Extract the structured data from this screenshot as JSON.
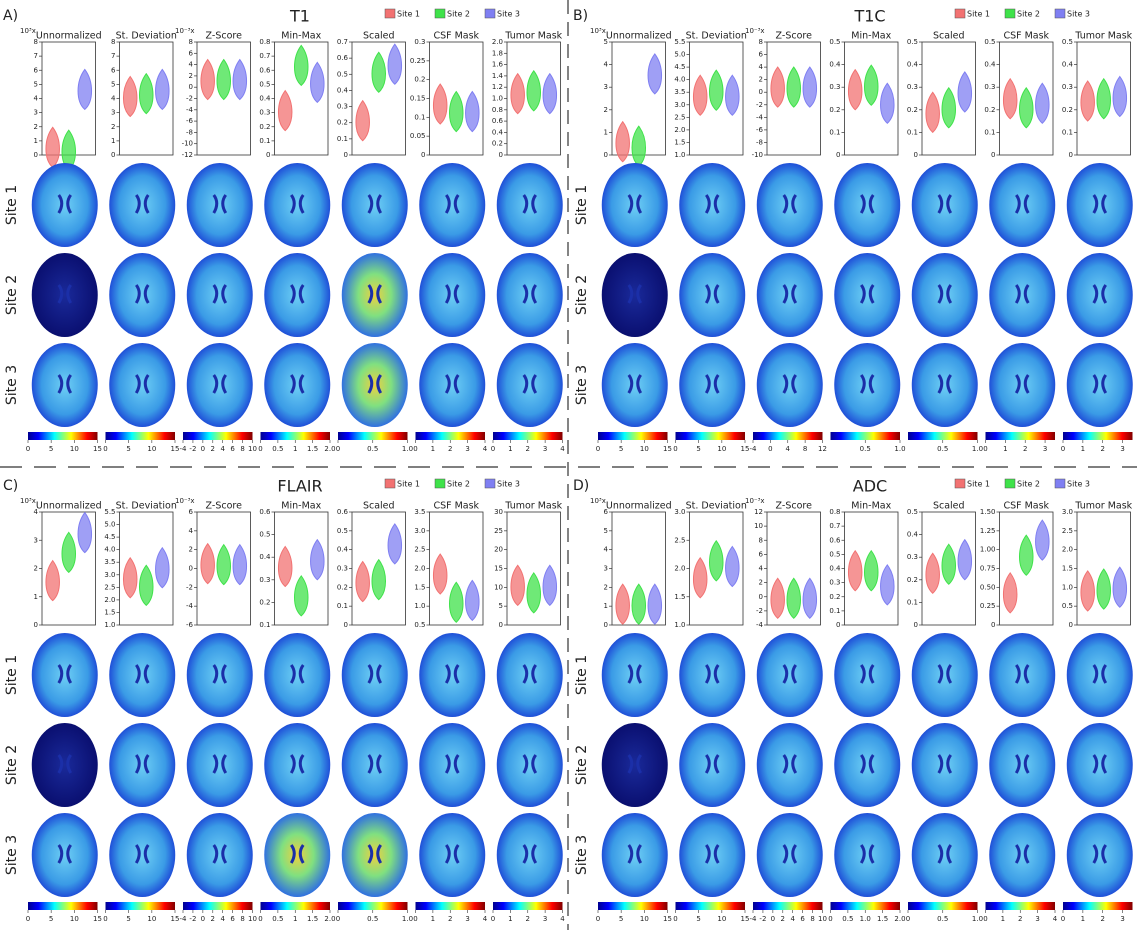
{
  "sites": [
    {
      "name": "Site 1",
      "color": "#f27272"
    },
    {
      "name": "Site 2",
      "color": "#3fe24a"
    },
    {
      "name": "Site 3",
      "color": "#7f7ff2"
    }
  ],
  "panels": [
    {
      "label": "A)",
      "title": "T1",
      "methods": [
        {
          "name": "Unnormalized",
          "scale": "10³x",
          "ylim": [
            0,
            8
          ],
          "yticks": [
            0,
            1,
            2,
            3,
            4,
            5,
            6,
            7,
            8
          ],
          "medians": [
            0.4,
            0.2,
            4.5
          ],
          "cbar": {
            "lim": [
              0,
              15
            ],
            "ticks": [
              0,
              5,
              10,
              15
            ]
          }
        },
        {
          "name": "St. Deviation",
          "ylim": [
            0,
            8
          ],
          "yticks": [
            0,
            1,
            2,
            3,
            4,
            5,
            6,
            7,
            8
          ],
          "medians": [
            4,
            4.2,
            4.5
          ],
          "cbar": {
            "lim": [
              0,
              15
            ],
            "ticks": [
              0,
              5,
              10,
              15
            ]
          }
        },
        {
          "name": "Z-Score",
          "scale": "10⁻³x",
          "ylim": [
            -12,
            8
          ],
          "yticks": [
            -12,
            -10,
            -8,
            -6,
            -4,
            -2,
            0,
            2,
            4,
            6,
            8
          ],
          "medians": [
            1,
            1,
            1
          ],
          "cbar": {
            "lim": [
              -4,
              10
            ],
            "ticks": [
              -4,
              -2,
              0,
              2,
              4,
              6,
              8,
              10
            ]
          }
        },
        {
          "name": "Min-Max",
          "ylim": [
            0,
            0.8
          ],
          "yticks": [
            0,
            0.1,
            0.2,
            0.3,
            0.4,
            0.5,
            0.6,
            0.7,
            0.8
          ],
          "medians": [
            0.3,
            0.62,
            0.5
          ],
          "cbar": {
            "lim": [
              0,
              2
            ],
            "ticks": [
              0,
              0.5,
              1,
              1.5,
              {
                "value": 2,
                "label": "2.0"
              }
            ]
          }
        },
        {
          "name": "Scaled",
          "ylim": [
            0,
            0.7
          ],
          "yticks": [
            0,
            0.1,
            0.2,
            0.3,
            0.4,
            0.5,
            0.6,
            0.7
          ],
          "medians": [
            0.2,
            0.5,
            0.55
          ],
          "cbar": {
            "lim": [
              0,
              1
            ],
            "ticks": [
              0,
              0.5,
              {
                "value": 1,
                "label": "1.0"
              }
            ]
          }
        },
        {
          "name": "CSF Mask",
          "ylim": [
            0,
            0.3
          ],
          "yticks": [
            0,
            0.05,
            0.1,
            0.15,
            0.2,
            0.25,
            0.3
          ],
          "medians": [
            0.13,
            0.11,
            0.11
          ],
          "cbar": {
            "lim": [
              0,
              4
            ],
            "ticks": [
              0,
              1,
              2,
              3,
              4
            ]
          }
        },
        {
          "name": "Tumor Mask",
          "ylim": [
            0,
            2
          ],
          "yticks": [
            0,
            0.2,
            0.4,
            0.6,
            0.8,
            {
              "value": 1,
              "label": "1.0"
            },
            1.2,
            1.4,
            1.6,
            1.8,
            {
              "value": 2,
              "label": "2.0"
            }
          ],
          "medians": [
            1.05,
            1.1,
            1.05
          ],
          "cbar": {
            "lim": [
              0,
              4
            ],
            "ticks": [
              0,
              1,
              2,
              3,
              4
            ]
          }
        }
      ]
    },
    {
      "label": "B)",
      "title": "T1C",
      "methods": [
        {
          "name": "Unnormalized",
          "scale": "10³x",
          "ylim": [
            0,
            5
          ],
          "yticks": [
            0,
            1,
            2,
            3,
            4,
            5
          ],
          "medians": [
            0.5,
            0.3,
            3.5
          ],
          "cbar": {
            "lim": [
              0,
              15
            ],
            "ticks": [
              0,
              5,
              10,
              15
            ]
          }
        },
        {
          "name": "St. Deviation",
          "ylim": [
            1,
            5.5
          ],
          "yticks": [
            {
              "value": 1,
              "label": "1.0"
            },
            1.5,
            {
              "value": 2,
              "label": "2.0"
            },
            2.5,
            {
              "value": 3,
              "label": "3.0"
            },
            3.5,
            {
              "value": 4,
              "label": "4.0"
            },
            4.5,
            {
              "value": 5,
              "label": "5.0"
            },
            5.5
          ],
          "medians": [
            3.3,
            3.5,
            3.3
          ],
          "cbar": {
            "lim": [
              0,
              15
            ],
            "ticks": [
              0,
              5,
              10,
              15
            ]
          }
        },
        {
          "name": "Z-Score",
          "scale": "10⁻³x",
          "ylim": [
            -10,
            8
          ],
          "yticks": [
            -10,
            -8,
            -6,
            -4,
            -2,
            0,
            2,
            4,
            6,
            8
          ],
          "medians": [
            0.5,
            0.5,
            0.5
          ],
          "cbar": {
            "lim": [
              -4,
              12
            ],
            "ticks": [
              -4,
              0,
              4,
              8,
              12
            ]
          }
        },
        {
          "name": "Min-Max",
          "ylim": [
            0,
            0.5
          ],
          "yticks": [
            0,
            0.1,
            0.2,
            0.3,
            0.4,
            0.5
          ],
          "medians": [
            0.28,
            0.3,
            0.22
          ],
          "cbar": {
            "lim": [
              0,
              1
            ],
            "ticks": [
              0.5,
              {
                "value": 1,
                "label": "1.0"
              }
            ]
          }
        },
        {
          "name": "Scaled",
          "ylim": [
            0,
            0.5
          ],
          "yticks": [
            0,
            0.1,
            0.2,
            0.3,
            0.4,
            0.5
          ],
          "medians": [
            0.18,
            0.2,
            0.27
          ],
          "cbar": {
            "lim": [
              0,
              1
            ],
            "ticks": [
              0.5,
              {
                "value": 1,
                "label": "1.0"
              }
            ]
          }
        },
        {
          "name": "CSF Mask",
          "ylim": [
            0,
            0.5
          ],
          "yticks": [
            0,
            0.1,
            0.2,
            0.3,
            0.4,
            0.5
          ],
          "medians": [
            0.24,
            0.2,
            0.22
          ],
          "cbar": {
            "lim": [
              0,
              3.5
            ],
            "ticks": [
              0,
              1,
              2,
              3
            ]
          }
        },
        {
          "name": "Tumor Mask",
          "ylim": [
            0,
            0.5
          ],
          "yticks": [
            0,
            0.1,
            0.2,
            0.3,
            0.4,
            0.5
          ],
          "medians": [
            0.23,
            0.24,
            0.25
          ],
          "cbar": {
            "lim": [
              0,
              3.5
            ],
            "ticks": [
              0,
              1,
              2,
              3
            ]
          }
        }
      ]
    },
    {
      "label": "C)",
      "title": "FLAIR",
      "methods": [
        {
          "name": "Unnormalized",
          "scale": "10³x",
          "ylim": [
            0,
            4
          ],
          "yticks": [
            0,
            1,
            2,
            3,
            4
          ],
          "medians": [
            1.5,
            2.5,
            3.2
          ],
          "cbar": {
            "lim": [
              0,
              15
            ],
            "ticks": [
              0,
              5,
              10,
              15
            ]
          }
        },
        {
          "name": "St. Deviation",
          "ylim": [
            1,
            5.5
          ],
          "yticks": [
            {
              "value": 1,
              "label": "1.0"
            },
            1.5,
            {
              "value": 2,
              "label": "2.0"
            },
            2.5,
            {
              "value": 3,
              "label": "3.0"
            },
            3.5,
            {
              "value": 4,
              "label": "4.0"
            },
            4.5,
            {
              "value": 5,
              "label": "5.0"
            },
            5.5
          ],
          "medians": [
            2.8,
            2.5,
            3.2
          ],
          "cbar": {
            "lim": [
              0,
              15
            ],
            "ticks": [
              0,
              5,
              10,
              15
            ]
          }
        },
        {
          "name": "Z-Score",
          "scale": "10⁻³x",
          "ylim": [
            -6,
            6
          ],
          "yticks": [
            -6,
            -4,
            -2,
            0,
            2,
            4,
            6
          ],
          "medians": [
            0.3,
            0.2,
            0.2
          ],
          "cbar": {
            "lim": [
              -4,
              10
            ],
            "ticks": [
              -4,
              -2,
              0,
              2,
              4,
              6,
              8,
              10
            ]
          }
        },
        {
          "name": "Min-Max",
          "ylim": [
            0.1,
            0.6
          ],
          "yticks": [
            0.1,
            0.2,
            0.3,
            0.4,
            0.5,
            0.6
          ],
          "medians": [
            0.35,
            0.22,
            0.38
          ],
          "cbar": {
            "lim": [
              0,
              2
            ],
            "ticks": [
              0,
              0.5,
              1,
              1.5,
              {
                "value": 2,
                "label": "2.0"
              }
            ]
          }
        },
        {
          "name": "Scaled",
          "ylim": [
            0,
            0.6
          ],
          "yticks": [
            0,
            0.1,
            0.2,
            0.3,
            0.4,
            0.5,
            0.6
          ],
          "medians": [
            0.22,
            0.23,
            0.42
          ],
          "cbar": {
            "lim": [
              0,
              1
            ],
            "ticks": [
              0,
              0.5,
              {
                "value": 1,
                "label": "1.0"
              }
            ]
          }
        },
        {
          "name": "CSF Mask",
          "ylim": [
            0.5,
            3.5
          ],
          "yticks": [
            0.5,
            {
              "value": 1,
              "label": "1.0"
            },
            1.5,
            {
              "value": 2,
              "label": "2.0"
            },
            2.5,
            {
              "value": 3,
              "label": "3.0"
            },
            3.5
          ],
          "medians": [
            1.8,
            1.05,
            1.1
          ],
          "cbar": {
            "lim": [
              0,
              4
            ],
            "ticks": [
              0,
              1,
              2,
              3,
              4
            ]
          }
        },
        {
          "name": "Tumor Mask",
          "ylim": [
            0,
            30
          ],
          "yticks": [
            0,
            5,
            10,
            15,
            20,
            25,
            30
          ],
          "medians": [
            10,
            8,
            10
          ],
          "cbar": {
            "lim": [
              0,
              4
            ],
            "ticks": [
              0,
              1,
              2,
              3,
              4
            ]
          }
        }
      ]
    },
    {
      "label": "D)",
      "title": "ADC",
      "methods": [
        {
          "name": "Unnormalized",
          "scale": "10³x",
          "ylim": [
            0,
            6
          ],
          "yticks": [
            0,
            1,
            2,
            3,
            4,
            5,
            6
          ],
          "medians": [
            1,
            1,
            1
          ],
          "cbar": {
            "lim": [
              0,
              15
            ],
            "ticks": [
              0,
              5,
              10,
              15
            ]
          }
        },
        {
          "name": "St. Deviation",
          "ylim": [
            1,
            3
          ],
          "yticks": [
            {
              "value": 1,
              "label": "1.0"
            },
            1.5,
            {
              "value": 2,
              "label": "2.0"
            },
            2.5,
            {
              "value": 3,
              "label": "3.0"
            }
          ],
          "medians": [
            1.8,
            2.1,
            2
          ],
          "cbar": {
            "lim": [
              0,
              15
            ],
            "ticks": [
              0,
              5,
              10,
              15
            ]
          }
        },
        {
          "name": "Z-Score",
          "scale": "10⁻³x",
          "ylim": [
            -4,
            12
          ],
          "yticks": [
            -4,
            -2,
            0,
            2,
            4,
            6,
            8,
            10,
            12
          ],
          "medians": [
            -0.5,
            -0.5,
            -0.5
          ],
          "cbar": {
            "lim": [
              -4,
              10
            ],
            "ticks": [
              -4,
              -2,
              0,
              2,
              4,
              6,
              8,
              10
            ]
          }
        },
        {
          "name": "Min-Max",
          "ylim": [
            0,
            0.8
          ],
          "yticks": [
            0,
            0.1,
            0.2,
            0.3,
            0.4,
            0.5,
            0.6,
            0.7,
            0.8
          ],
          "medians": [
            0.37,
            0.37,
            0.27
          ],
          "cbar": {
            "lim": [
              0,
              2
            ],
            "ticks": [
              0,
              0.5,
              {
                "value": 1,
                "label": "1.0"
              },
              1.5,
              {
                "value": 2,
                "label": "2.0"
              }
            ]
          }
        },
        {
          "name": "Scaled",
          "ylim": [
            0,
            0.5
          ],
          "yticks": [
            0,
            0.1,
            0.2,
            0.3,
            0.4,
            0.5
          ],
          "medians": [
            0.22,
            0.26,
            0.28
          ],
          "cbar": {
            "lim": [
              0,
              1
            ],
            "ticks": [
              0,
              0.5,
              {
                "value": 1,
                "label": "1.0"
              }
            ]
          }
        },
        {
          "name": "CSF Mask",
          "ylim": [
            0,
            1.5
          ],
          "yticks": [
            0,
            0.25,
            {
              "value": 0.5,
              "label": "0.50"
            },
            0.75,
            {
              "value": 1,
              "label": "1.00"
            },
            1.25,
            {
              "value": 1.5,
              "label": "1.50"
            }
          ],
          "medians": [
            0.4,
            0.9,
            1.1
          ],
          "cbar": {
            "lim": [
              0,
              4
            ],
            "ticks": [
              0,
              1,
              2,
              3,
              4
            ]
          }
        },
        {
          "name": "Tumor Mask",
          "ylim": [
            0,
            3
          ],
          "yticks": [
            0,
            0.5,
            {
              "value": 1,
              "label": "1.0"
            },
            1.5,
            {
              "value": 2,
              "label": "2.0"
            },
            2.5,
            {
              "value": 3,
              "label": "3.0"
            }
          ],
          "medians": [
            0.85,
            0.9,
            0.95
          ],
          "cbar": {
            "lim": [
              0,
              3.5
            ],
            "ticks": [
              0,
              1,
              2,
              3
            ]
          }
        }
      ]
    }
  ]
}
